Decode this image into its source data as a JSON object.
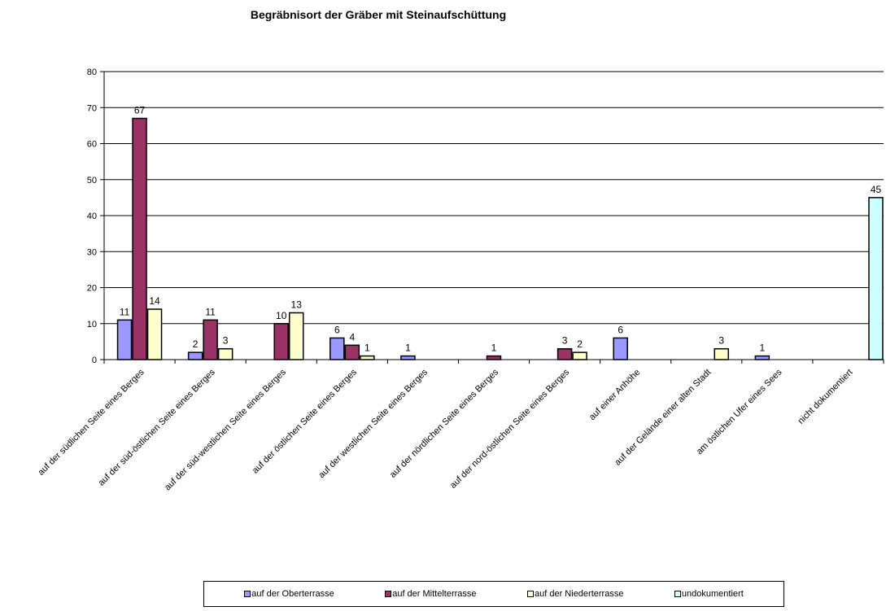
{
  "chart_data": {
    "type": "bar",
    "title": "Begräbnisort der Gräber mit Steinaufschüttung",
    "xlabel": "",
    "ylabel": "",
    "ylim": [
      0,
      80
    ],
    "yticks": [
      "0",
      "10",
      "20",
      "30",
      "40",
      "50",
      "60",
      "70",
      "80"
    ],
    "grid": true,
    "legend_position": "bottom",
    "categories": [
      "auf der südlichen Seite eines Berges",
      "auf der süd-östlichen Seite eines Berges",
      "auf der süd-westlichen Seite eines Berges",
      "auf der östlichen Seite eines Berges",
      "auf der westlichen Seite eines Berges",
      "auf der nördlichen Seite eines Berges",
      "auf der nord-östlichen Seite eines Berges",
      "auf einer Anhöhe",
      "auf der Gelände einer alten Stadt",
      "am östlichen Ufer eines Sees",
      "nicht dokumentiert"
    ],
    "series": [
      {
        "name": "auf der Oberterrasse",
        "color": "#9999ff",
        "values": [
          11,
          2,
          null,
          6,
          1,
          null,
          null,
          6,
          null,
          1,
          null
        ]
      },
      {
        "name": "auf der Mittelterrasse",
        "color": "#993366",
        "values": [
          67,
          11,
          10,
          4,
          null,
          1,
          3,
          null,
          null,
          null,
          null
        ]
      },
      {
        "name": "auf der Niederterrasse",
        "color": "#ffffcc",
        "values": [
          14,
          3,
          13,
          1,
          null,
          null,
          2,
          null,
          3,
          null,
          null
        ]
      },
      {
        "name": "undokumentiert",
        "color": "#ccffff",
        "values": [
          null,
          null,
          null,
          null,
          null,
          null,
          null,
          null,
          null,
          null,
          45
        ]
      }
    ]
  }
}
